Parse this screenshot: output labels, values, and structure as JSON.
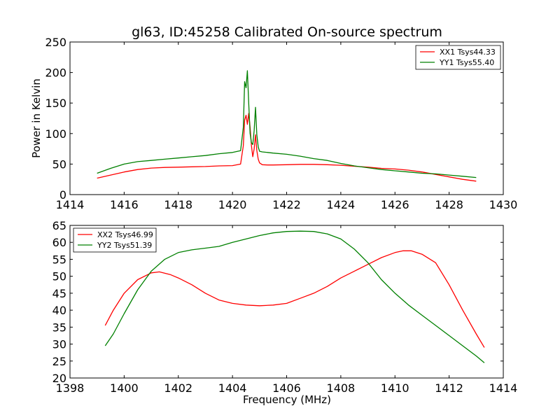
{
  "title": "gl63, ID:45258 Calibrated On-source spectrum",
  "xlabel": "Frequency (MHz)",
  "chart_data": [
    {
      "type": "line",
      "ylabel": "Power in Kelvin",
      "xlim": [
        1414,
        1430
      ],
      "ylim": [
        0,
        250
      ],
      "xticks": [
        1414,
        1416,
        1418,
        1420,
        1422,
        1424,
        1426,
        1428,
        1430
      ],
      "yticks": [
        0,
        50,
        100,
        150,
        200,
        250
      ],
      "legend_loc": "upper-right",
      "series": [
        {
          "name": "XX1 Tsys44.33",
          "color": "#ff0000",
          "x": [
            1415.0,
            1415.5,
            1416.0,
            1416.5,
            1417.0,
            1417.5,
            1418.0,
            1418.5,
            1419.0,
            1419.5,
            1420.0,
            1420.3,
            1420.4,
            1420.45,
            1420.5,
            1420.55,
            1420.6,
            1420.65,
            1420.7,
            1420.75,
            1420.8,
            1420.85,
            1420.9,
            1420.95,
            1421.0,
            1421.1,
            1421.3,
            1421.5,
            1422.0,
            1422.5,
            1423.0,
            1423.5,
            1424.0,
            1424.5,
            1425.0,
            1425.5,
            1426.0,
            1426.5,
            1427.0,
            1427.5,
            1428.0,
            1428.5,
            1429.0
          ],
          "values": [
            27,
            32,
            37,
            41,
            43.5,
            44.5,
            45,
            45.5,
            46,
            47,
            47.5,
            50,
            80,
            122,
            130,
            115,
            133,
            110,
            80,
            62,
            75,
            98,
            72,
            58,
            52,
            49,
            48.5,
            48.5,
            49,
            49.5,
            49.5,
            49,
            48,
            46.5,
            45,
            43,
            42,
            40,
            37,
            33,
            29,
            25,
            22
          ]
        },
        {
          "name": "YY1 Tsys55.40",
          "color": "#008000",
          "x": [
            1415.0,
            1415.5,
            1416.0,
            1416.5,
            1417.0,
            1417.5,
            1418.0,
            1418.5,
            1419.0,
            1419.5,
            1420.0,
            1420.3,
            1420.4,
            1420.45,
            1420.5,
            1420.55,
            1420.6,
            1420.65,
            1420.7,
            1420.75,
            1420.8,
            1420.85,
            1420.9,
            1420.95,
            1421.0,
            1421.1,
            1421.3,
            1421.5,
            1422.0,
            1422.5,
            1423.0,
            1423.5,
            1424.0,
            1424.5,
            1425.0,
            1425.5,
            1426.0,
            1426.5,
            1427.0,
            1427.5,
            1428.0,
            1428.5,
            1429.0
          ],
          "values": [
            35,
            43,
            50,
            54,
            56,
            58,
            60,
            62,
            64,
            67,
            69,
            72,
            110,
            185,
            175,
            203,
            150,
            100,
            85,
            82,
            105,
            143,
            98,
            78,
            71,
            70,
            69,
            68,
            66,
            63,
            59,
            56,
            51,
            47,
            44,
            41,
            39,
            37,
            35,
            34,
            32,
            30,
            28
          ]
        }
      ]
    },
    {
      "type": "line",
      "ylabel": "",
      "xlim": [
        1398,
        1414
      ],
      "ylim": [
        20,
        65
      ],
      "xticks": [
        1398,
        1400,
        1402,
        1404,
        1406,
        1408,
        1410,
        1412,
        1414
      ],
      "yticks": [
        20,
        25,
        30,
        35,
        40,
        45,
        50,
        55,
        60,
        65
      ],
      "legend_loc": "upper-left",
      "series": [
        {
          "name": "XX2 Tsys46.99",
          "color": "#ff0000",
          "x": [
            1399.3,
            1399.6,
            1400.0,
            1400.5,
            1401.0,
            1401.3,
            1401.7,
            1402.0,
            1402.5,
            1403.0,
            1403.5,
            1404.0,
            1404.5,
            1405.0,
            1405.5,
            1406.0,
            1406.5,
            1407.0,
            1407.5,
            1408.0,
            1408.5,
            1409.0,
            1409.5,
            1410.0,
            1410.3,
            1410.6,
            1411.0,
            1411.5,
            1412.0,
            1412.5,
            1413.0,
            1413.3
          ],
          "values": [
            35.5,
            40,
            45,
            49,
            51,
            51.3,
            50.5,
            49.5,
            47.5,
            45,
            43,
            42,
            41.5,
            41.3,
            41.5,
            42,
            43.5,
            45,
            47,
            49.5,
            51.5,
            53.5,
            55.5,
            57,
            57.5,
            57.5,
            56.5,
            54,
            47.5,
            40,
            33,
            29
          ]
        },
        {
          "name": "YY2 Tsys51.39",
          "color": "#008000",
          "x": [
            1399.3,
            1399.6,
            1400.0,
            1400.5,
            1401.0,
            1401.5,
            1402.0,
            1402.5,
            1403.0,
            1403.5,
            1404.0,
            1404.5,
            1405.0,
            1405.5,
            1406.0,
            1406.5,
            1407.0,
            1407.5,
            1408.0,
            1408.5,
            1409.0,
            1409.5,
            1410.0,
            1410.5,
            1411.0,
            1411.5,
            1412.0,
            1412.5,
            1413.0,
            1413.3
          ],
          "values": [
            29.5,
            33,
            39,
            46,
            51.5,
            55,
            57,
            57.8,
            58.3,
            58.8,
            60,
            61,
            62,
            62.8,
            63.2,
            63.3,
            63.2,
            62.5,
            61,
            58,
            54,
            49,
            45,
            41.5,
            38.5,
            35.5,
            32.5,
            29.5,
            26.5,
            24.5
          ]
        }
      ]
    }
  ]
}
